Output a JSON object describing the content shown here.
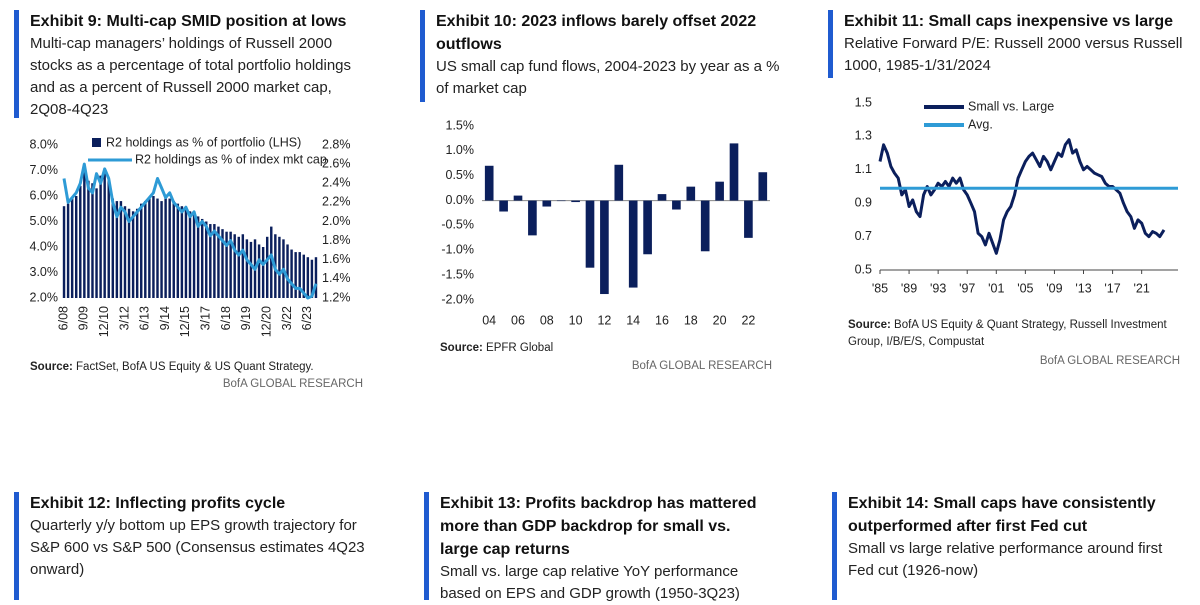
{
  "chart_data": [
    {
      "type": "combo",
      "title": "Exhibit 9: Multi-cap SMID position at lows",
      "subtitle": "Multi-cap managers’ holdings of Russell 2000 stocks as a percentage of total portfolio holdings and as a percent of Russell 2000 market cap, 2Q08-4Q23",
      "categories": [
        "6/08",
        null,
        null,
        null,
        null,
        "9/09",
        null,
        null,
        null,
        null,
        "12/10",
        null,
        null,
        null,
        null,
        "3/12",
        null,
        null,
        null,
        null,
        "6/13",
        null,
        null,
        null,
        null,
        "9/14",
        null,
        null,
        null,
        null,
        "12/15",
        null,
        null,
        null,
        null,
        "3/17",
        null,
        null,
        null,
        null,
        "6/18",
        null,
        null,
        null,
        null,
        "9/19",
        null,
        null,
        null,
        null,
        "12/20",
        null,
        null,
        null,
        null,
        "3/22",
        null,
        null,
        null,
        null,
        "6/23",
        null,
        null
      ],
      "series": [
        {
          "name": "R2 holdings as % of portfolio (LHS)",
          "color": "#0b1f5c",
          "kind": "bar",
          "values": [
            5.6,
            5.7,
            5.9,
            6.0,
            6.4,
            7.0,
            6.6,
            6.5,
            6.3,
            6.8,
            7.1,
            6.7,
            5.9,
            5.8,
            5.8,
            5.6,
            5.5,
            5.4,
            5.5,
            5.7,
            5.8,
            5.9,
            6.0,
            5.9,
            5.8,
            6.0,
            5.9,
            5.8,
            5.7,
            5.6,
            5.5,
            5.4,
            5.3,
            5.2,
            5.1,
            5.0,
            4.9,
            4.9,
            4.8,
            4.7,
            4.6,
            4.6,
            4.5,
            4.4,
            4.5,
            4.3,
            4.2,
            4.3,
            4.1,
            4.0,
            4.4,
            4.8,
            4.5,
            4.4,
            4.3,
            4.1,
            3.9,
            3.8,
            3.8,
            3.7,
            3.6,
            3.5,
            3.6
          ]
        },
        {
          "name": "R2 holdings as % of index mkt cap",
          "color": "#2e9bd6",
          "kind": "line",
          "axis": "y2",
          "values": [
            2.45,
            2.2,
            2.25,
            2.3,
            2.4,
            2.6,
            2.35,
            2.3,
            2.5,
            2.4,
            2.55,
            2.45,
            2.2,
            2.05,
            2.15,
            2.1,
            2.0,
            2.05,
            2.1,
            2.15,
            2.2,
            2.25,
            2.3,
            2.45,
            2.35,
            2.25,
            2.3,
            2.2,
            2.15,
            2.1,
            2.15,
            2.05,
            2.1,
            1.95,
            2.0,
            1.95,
            1.85,
            1.9,
            1.85,
            1.8,
            1.75,
            1.8,
            1.7,
            1.65,
            1.7,
            1.6,
            1.55,
            1.5,
            1.6,
            1.55,
            1.6,
            1.65,
            1.5,
            1.45,
            1.5,
            1.4,
            1.35,
            1.3,
            1.3,
            1.25,
            1.2,
            1.22,
            1.35
          ]
        }
      ],
      "ylim": [
        2,
        8
      ],
      "yticks": [
        {
          "value": 2,
          "label": "2.0%"
        },
        {
          "value": 3,
          "label": "3.0%"
        },
        {
          "value": 4,
          "label": "4.0%"
        },
        {
          "value": 5,
          "label": "5.0%"
        },
        {
          "value": 6,
          "label": "6.0%"
        },
        {
          "value": 7,
          "label": "7.0%"
        },
        {
          "value": 8,
          "label": "8.0%"
        }
      ],
      "y2lim": [
        1.2,
        2.8
      ],
      "y2ticks": [
        {
          "value": 1.2,
          "label": "1.2%"
        },
        {
          "value": 1.4,
          "label": "1.4%"
        },
        {
          "value": 1.6,
          "label": "1.6%"
        },
        {
          "value": 1.8,
          "label": "1.8%"
        },
        {
          "value": 2.0,
          "label": "2.0%"
        },
        {
          "value": 2.2,
          "label": "2.2%"
        },
        {
          "value": 2.4,
          "label": "2.4%"
        },
        {
          "value": 2.6,
          "label": "2.6%"
        },
        {
          "value": 2.8,
          "label": "2.8%"
        }
      ],
      "source_label": "Source:",
      "source": "FactSet, BofA US Equity & US Quant Strategy.",
      "brand": "BofA GLOBAL RESEARCH"
    },
    {
      "type": "bar",
      "title": "Exhibit 10: 2023 inflows barely offset 2022 outflows",
      "subtitle": "US small cap fund flows, 2004-2023 by year as a % of market cap",
      "categories": [
        "04",
        null,
        "06",
        null,
        "08",
        null,
        "10",
        null,
        "12",
        null,
        "14",
        null,
        "16",
        null,
        "18",
        null,
        "20",
        null,
        "22",
        null
      ],
      "values": [
        0.7,
        -0.22,
        0.1,
        -0.7,
        -0.12,
        0.0,
        -0.03,
        -1.35,
        -1.88,
        0.72,
        -1.75,
        -1.08,
        0.13,
        -0.18,
        0.28,
        -1.02,
        0.38,
        1.15,
        -0.75,
        0.57
      ],
      "color": "#0b1f5c",
      "ylim": [
        -2,
        1.5
      ],
      "yticks": [
        {
          "value": -2,
          "label": "-2.0%"
        },
        {
          "value": -1.5,
          "label": "-1.5%"
        },
        {
          "value": -1,
          "label": "-1.0%"
        },
        {
          "value": -0.5,
          "label": "-0.5%"
        },
        {
          "value": 0,
          "label": "0.0%"
        },
        {
          "value": 0.5,
          "label": "0.5%"
        },
        {
          "value": 1,
          "label": "1.0%"
        },
        {
          "value": 1.5,
          "label": "1.5%"
        }
      ],
      "source_label": "Source:",
      "source": "EPFR Global",
      "brand": "BofA GLOBAL RESEARCH"
    },
    {
      "type": "line",
      "title": "Exhibit 11: Small caps inexpensive vs large",
      "subtitle": "Relative Forward P/E: Russell 2000 versus Russell 1000, 1985-1/31/2024",
      "series": [
        {
          "name": "Small vs. Large",
          "color": "#0b1f5c",
          "x": [
            1985,
            1985.5,
            1986,
            1986.5,
            1987,
            1987.5,
            1988,
            1988.5,
            1989,
            1989.5,
            1990,
            1990.5,
            1991,
            1991.5,
            1992,
            1992.5,
            1993,
            1993.5,
            1994,
            1994.5,
            1995,
            1995.5,
            1996,
            1996.5,
            1997,
            1997.5,
            1998,
            1998.5,
            1999,
            1999.5,
            2000,
            2000.5,
            2001,
            2001.5,
            2002,
            2002.5,
            2003,
            2003.5,
            2004,
            2004.5,
            2005,
            2005.5,
            2006,
            2006.5,
            2007,
            2007.5,
            2008,
            2008.5,
            2009,
            2009.5,
            2010,
            2010.5,
            2011,
            2011.5,
            2012,
            2012.5,
            2013,
            2013.5,
            2014,
            2014.5,
            2015,
            2015.5,
            2016,
            2016.5,
            2017,
            2017.5,
            2018,
            2018.5,
            2019,
            2019.5,
            2020,
            2020.5,
            2021,
            2021.5,
            2022,
            2022.5,
            2023,
            2023.5,
            2024.08
          ],
          "values": [
            1.15,
            1.25,
            1.2,
            1.12,
            1.08,
            1.05,
            0.95,
            0.98,
            0.88,
            0.92,
            0.85,
            0.82,
            0.95,
            1.0,
            0.95,
            0.98,
            1.02,
            1.0,
            1.03,
            1.0,
            1.05,
            1.02,
            1.05,
            0.98,
            0.95,
            0.9,
            0.85,
            0.72,
            0.7,
            0.65,
            0.72,
            0.66,
            0.6,
            0.68,
            0.8,
            0.85,
            0.88,
            0.95,
            1.05,
            1.1,
            1.15,
            1.18,
            1.2,
            1.16,
            1.12,
            1.18,
            1.15,
            1.1,
            1.15,
            1.2,
            1.18,
            1.25,
            1.28,
            1.2,
            1.22,
            1.15,
            1.1,
            1.12,
            1.1,
            1.08,
            1.07,
            1.06,
            1.02,
            1.0,
            1.0,
            0.98,
            0.96,
            0.9,
            0.85,
            0.82,
            0.75,
            0.8,
            0.78,
            0.72,
            0.7,
            0.73,
            0.72,
            0.7,
            0.74
          ]
        },
        {
          "name": "Avg.",
          "color": "#2e9bd6",
          "x": [
            1985,
            2026
          ],
          "values": [
            0.99,
            0.99
          ]
        }
      ],
      "xlim": [
        1985,
        2026
      ],
      "xticks": [
        {
          "value": 1985,
          "label": "'85"
        },
        {
          "value": 1989,
          "label": "'89"
        },
        {
          "value": 1993,
          "label": "'93"
        },
        {
          "value": 1997,
          "label": "'97"
        },
        {
          "value": 2001,
          "label": "'01"
        },
        {
          "value": 2005,
          "label": "'05"
        },
        {
          "value": 2009,
          "label": "'09"
        },
        {
          "value": 2013,
          "label": "'13"
        },
        {
          "value": 2017,
          "label": "'17"
        },
        {
          "value": 2021,
          "label": "'21"
        }
      ],
      "ylim": [
        0.5,
        1.5
      ],
      "yticks": [
        0.5,
        0.7,
        0.9,
        1.1,
        1.3,
        1.5
      ],
      "source_label": "Source:",
      "source": "BofA US Equity & Quant Strategy, Russell Investment Group, I/B/E/S, Compustat",
      "brand": "BofA GLOBAL RESEARCH"
    }
  ],
  "panels": [
    {
      "title": "Exhibit 12: Inflecting profits cycle",
      "subtitle": "Quarterly y/y bottom up EPS growth trajectory for S&P 600 vs S&P 500 (Consensus estimates 4Q23 onward)"
    },
    {
      "title": "Exhibit 13: Profits backdrop has mattered more than GDP backdrop for small vs. large cap returns",
      "subtitle": "Small vs. large cap relative YoY performance based on EPS and GDP growth (1950-3Q23)"
    },
    {
      "title": "Exhibit 14: Small caps have consistently outperformed after first Fed cut",
      "subtitle": "Small vs large relative performance around first Fed cut (1926-now)"
    }
  ]
}
